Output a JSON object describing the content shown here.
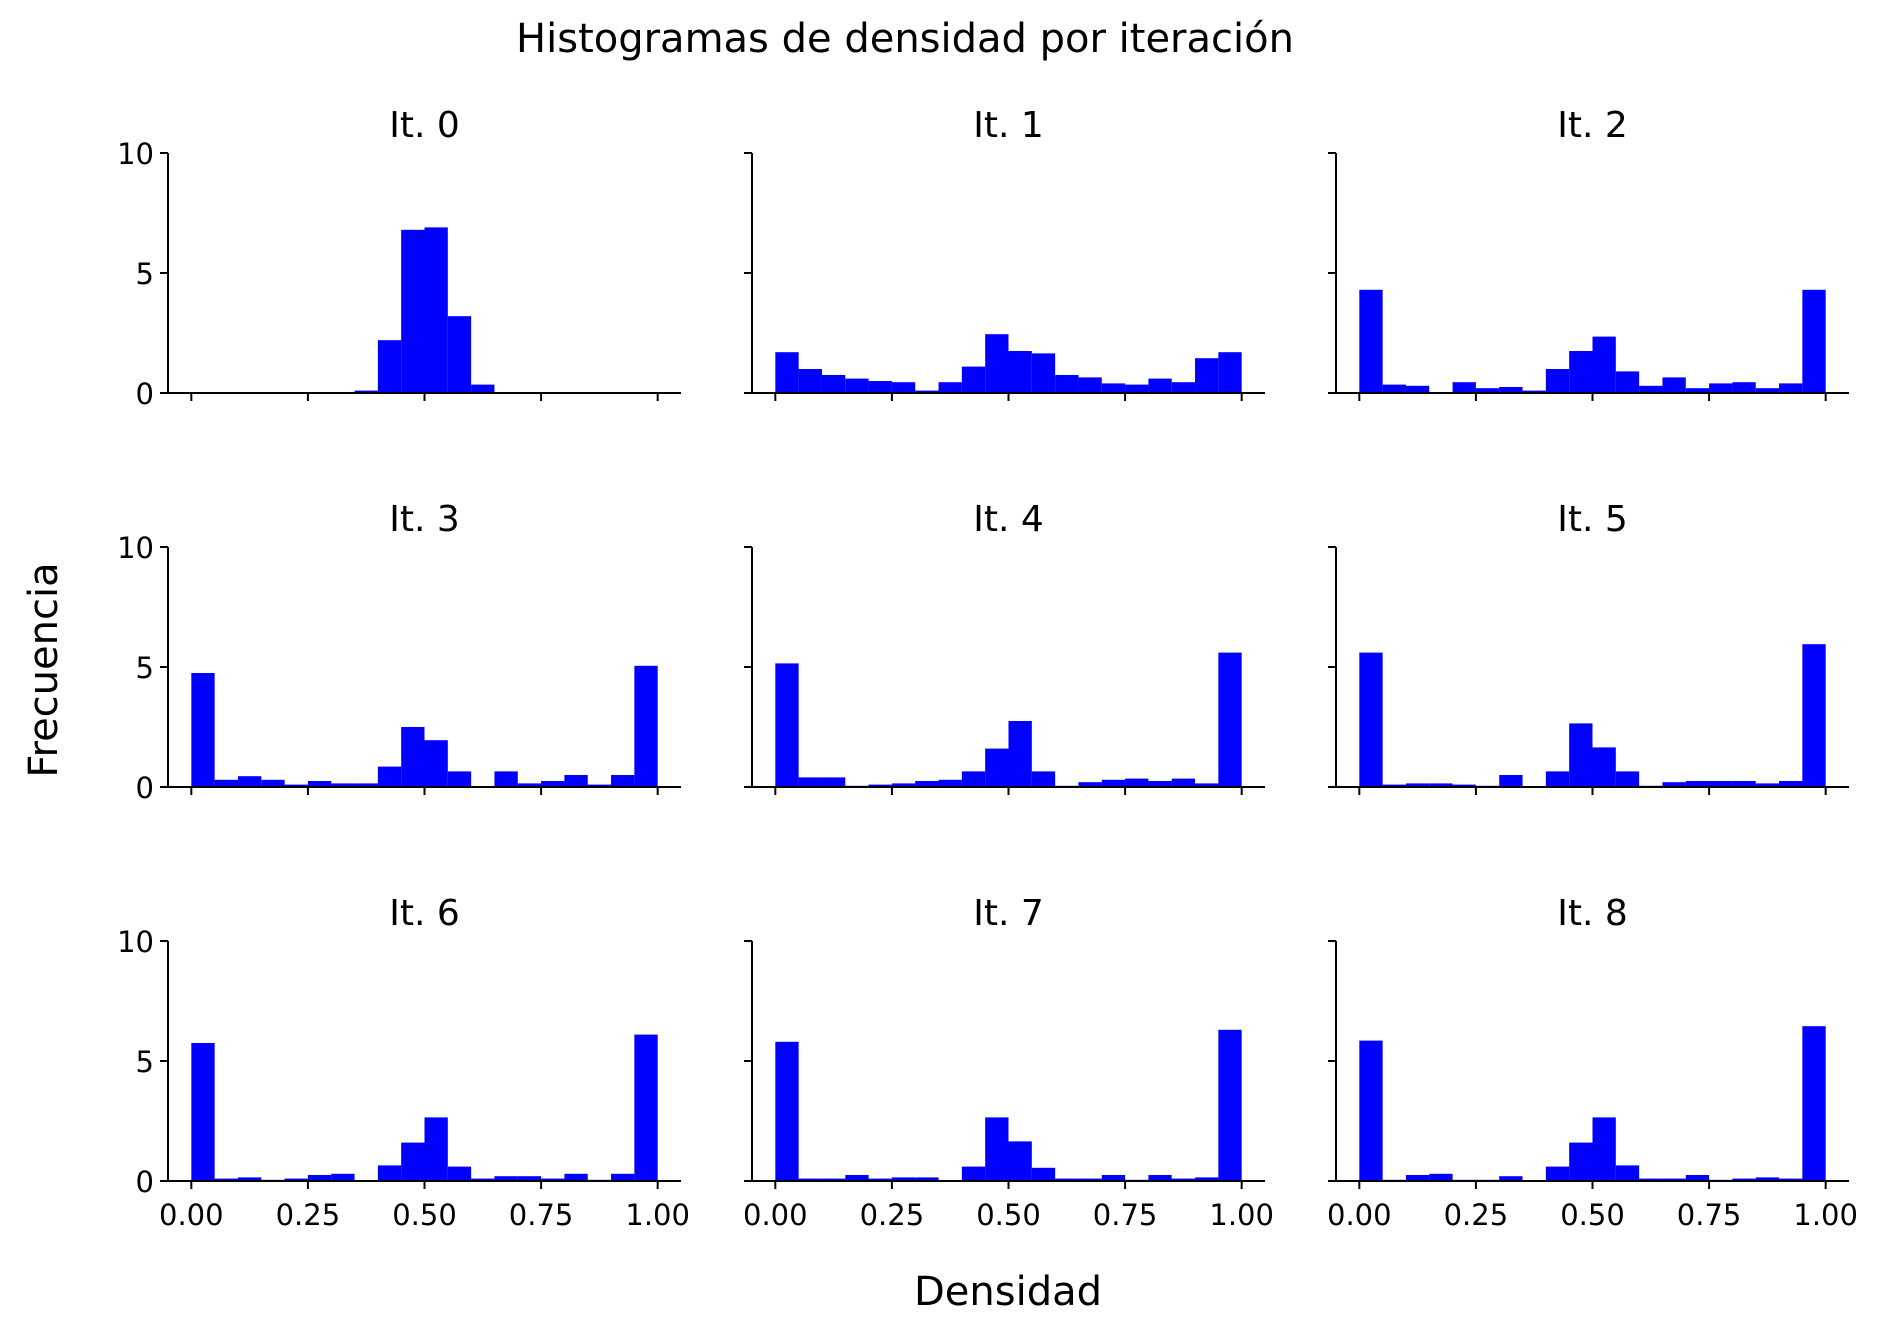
{
  "figure": {
    "title": "Histogramas de densidad por iteración",
    "xlabel": "Densidad",
    "ylabel": "Frecuencia"
  },
  "chart_data": {
    "type": "bar",
    "bar_color": "#0000ff",
    "x_range": [
      -0.05,
      1.05
    ],
    "y_range": [
      0,
      10
    ],
    "x_ticks": [
      "0.00",
      "0.25",
      "0.50",
      "0.75",
      "1.00"
    ],
    "y_ticks": [
      "0",
      "5",
      "10"
    ],
    "bin_width": 0.05,
    "bin_starts": [
      0.0,
      0.05,
      0.1,
      0.15,
      0.2,
      0.25,
      0.3,
      0.35,
      0.4,
      0.45,
      0.5,
      0.55,
      0.6,
      0.65,
      0.7,
      0.75,
      0.8,
      0.85,
      0.9,
      0.95
    ],
    "panels": [
      {
        "title": "It. 0",
        "values": [
          0,
          0,
          0,
          0,
          0,
          0,
          0,
          0.1,
          2.2,
          6.8,
          6.9,
          3.2,
          0.35,
          0,
          0,
          0,
          0,
          0,
          0,
          0
        ]
      },
      {
        "title": "It. 1",
        "values": [
          1.7,
          1.0,
          0.75,
          0.6,
          0.5,
          0.45,
          0.1,
          0.45,
          1.1,
          2.45,
          1.75,
          1.65,
          0.75,
          0.65,
          0.4,
          0.35,
          0.6,
          0.45,
          1.45,
          1.7
        ]
      },
      {
        "title": "It. 2",
        "values": [
          4.3,
          0.35,
          0.3,
          0,
          0.45,
          0.2,
          0.25,
          0.1,
          1.0,
          1.75,
          2.35,
          0.9,
          0.3,
          0.65,
          0.2,
          0.4,
          0.45,
          0.2,
          0.4,
          4.3
        ]
      },
      {
        "title": "It. 3",
        "values": [
          4.75,
          0.3,
          0.45,
          0.3,
          0.1,
          0.25,
          0.15,
          0.15,
          0.85,
          2.5,
          1.95,
          0.65,
          0,
          0.65,
          0.15,
          0.25,
          0.5,
          0.1,
          0.5,
          5.05
        ]
      },
      {
        "title": "It. 4",
        "values": [
          5.15,
          0.4,
          0.4,
          0.05,
          0.1,
          0.15,
          0.25,
          0.3,
          0.65,
          1.6,
          2.75,
          0.65,
          0.05,
          0.2,
          0.3,
          0.35,
          0.25,
          0.35,
          0.15,
          5.6
        ]
      },
      {
        "title": "It. 5",
        "values": [
          5.6,
          0.1,
          0.15,
          0.15,
          0.1,
          0.05,
          0.5,
          0,
          0.65,
          2.65,
          1.65,
          0.65,
          0.05,
          0.2,
          0.25,
          0.25,
          0.25,
          0.15,
          0.25,
          5.95
        ]
      },
      {
        "title": "It. 6",
        "values": [
          5.75,
          0.1,
          0.15,
          0.05,
          0.1,
          0.25,
          0.3,
          0,
          0.65,
          1.6,
          2.65,
          0.6,
          0.1,
          0.2,
          0.2,
          0.1,
          0.3,
          0.05,
          0.3,
          6.1
        ]
      },
      {
        "title": "It. 7",
        "values": [
          5.8,
          0.1,
          0.1,
          0.25,
          0.1,
          0.15,
          0.15,
          0,
          0.6,
          2.65,
          1.65,
          0.55,
          0.1,
          0.1,
          0.25,
          0.05,
          0.25,
          0.1,
          0.15,
          6.3
        ]
      },
      {
        "title": "It. 8",
        "values": [
          5.85,
          0.05,
          0.25,
          0.3,
          0.05,
          0.05,
          0.2,
          0,
          0.6,
          1.6,
          2.65,
          0.65,
          0.1,
          0.1,
          0.25,
          0.05,
          0.1,
          0.15,
          0.1,
          6.45
        ]
      }
    ]
  }
}
